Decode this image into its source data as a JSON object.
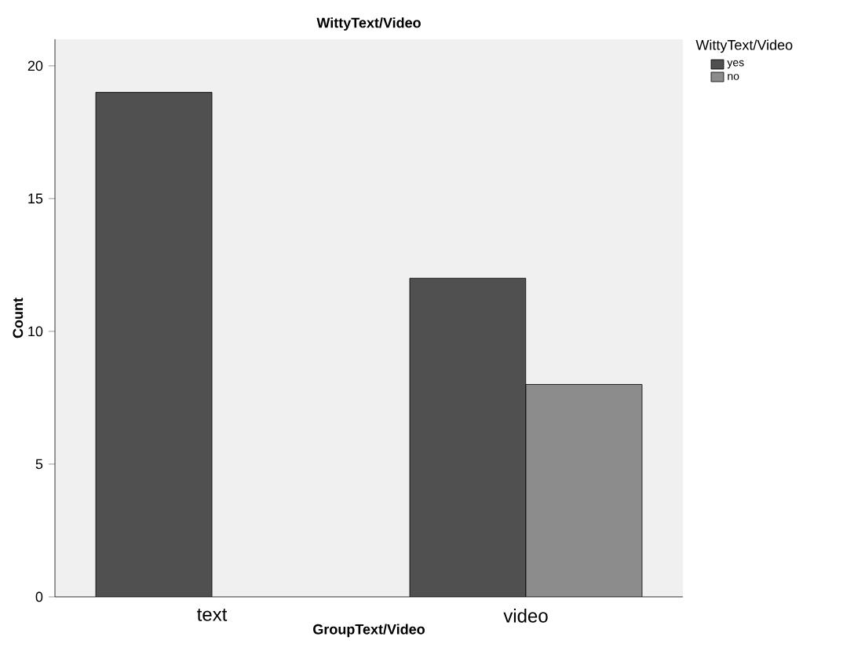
{
  "chart_data": {
    "type": "bar",
    "title": "WittyText/Video",
    "xlabel": "GroupText/Video",
    "ylabel": "Count",
    "legend_title": "WittyText/Video",
    "categories": [
      "text",
      "video"
    ],
    "series": [
      {
        "name": "yes",
        "color": "#505050",
        "values": [
          19,
          12
        ]
      },
      {
        "name": "no",
        "color": "#8c8c8c",
        "values": [
          null,
          8
        ]
      }
    ],
    "ylim": [
      0,
      21
    ],
    "yticks": [
      0,
      5,
      10,
      15,
      20
    ],
    "legend": "top right",
    "grid": false
  }
}
